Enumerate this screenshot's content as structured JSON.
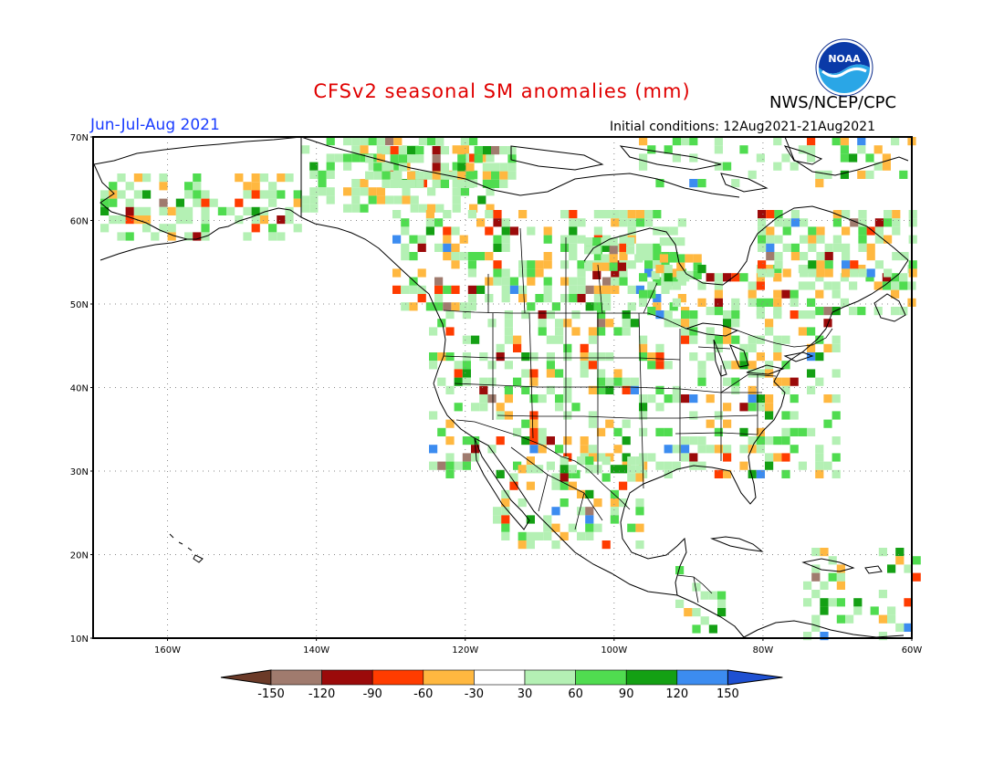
{
  "title": "CFSv2 seasonal SM anomalies (mm)",
  "agency": "NWS/NCEP/CPC",
  "period": "Jun-Jul-Aug 2021",
  "initial_conditions": "Initial conditions: 12Aug2021-21Aug2021",
  "logo_text": "NOAA",
  "lat_labels": [
    "70N",
    "60N",
    "50N",
    "40N",
    "30N",
    "20N",
    "10N"
  ],
  "lon_labels": [
    "160W",
    "140W",
    "120W",
    "100W",
    "80W",
    "60W"
  ],
  "colorbar": {
    "labels": [
      "-150",
      "-120",
      "-90",
      "-60",
      "-30",
      "30",
      "60",
      "90",
      "120",
      "150"
    ],
    "colors": [
      "#6b3a28",
      "#a07b6e",
      "#9b0a0a",
      "#ff3c00",
      "#ffb840",
      "#ffffff",
      "#b4f0b4",
      "#50dc50",
      "#14a014",
      "#3c8cf0",
      "#1e50d2"
    ]
  },
  "colors": {
    "land_outline": "#000000",
    "grid": "#888888",
    "title": "#e00000",
    "period": "#1a3cff"
  }
}
